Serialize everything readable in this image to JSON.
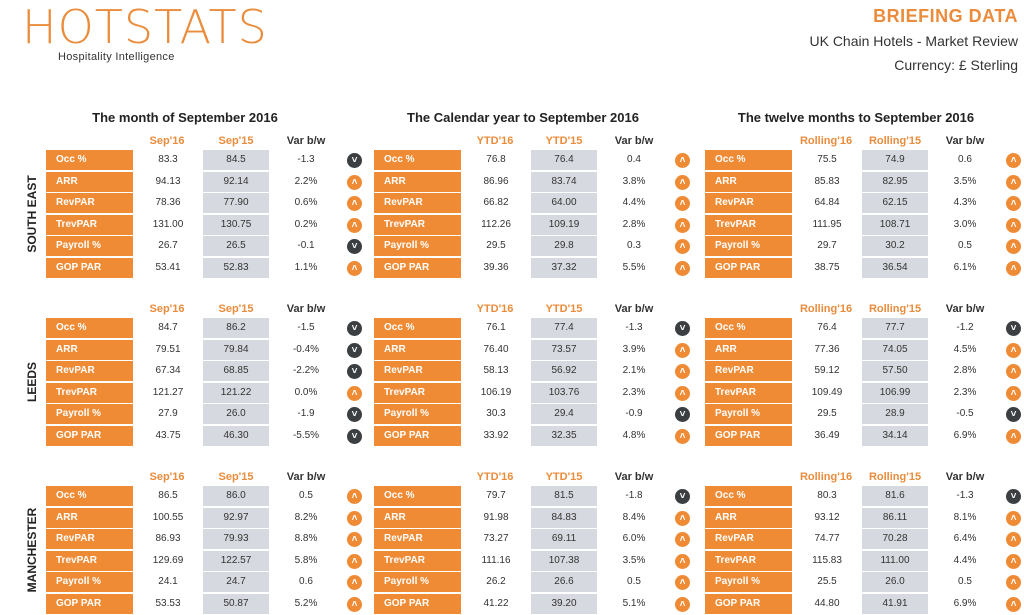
{
  "header": {
    "logo": "HOTSTATS",
    "tagline": "Hospitality Intelligence",
    "title": "BRIEFING DATA",
    "subtitle": "UK Chain Hotels - Market Review",
    "currency": "Currency: £ Sterling"
  },
  "periods": [
    {
      "title": "The month of September 2016",
      "cols": [
        "Sep'16",
        "Sep'15",
        "Var b/w"
      ]
    },
    {
      "title": "The Calendar year to September 2016",
      "cols": [
        "YTD'16",
        "YTD'15",
        "Var b/w"
      ]
    },
    {
      "title": "The twelve months to September 2016",
      "cols": [
        "Rolling'16",
        "Rolling'15",
        "Var b/w"
      ]
    }
  ],
  "regions": [
    {
      "name": "SOUTH EAST",
      "blocks": [
        [
          {
            "label": "Occ %",
            "a": "83.3",
            "b": "84.5",
            "var": "-1.3",
            "dir": "down"
          },
          {
            "label": "ARR",
            "a": "94.13",
            "b": "92.14",
            "var": "2.2%",
            "dir": "up"
          },
          {
            "label": "RevPAR",
            "a": "78.36",
            "b": "77.90",
            "var": "0.6%",
            "dir": "up"
          },
          {
            "label": "TrevPAR",
            "a": "131.00",
            "b": "130.75",
            "var": "0.2%",
            "dir": "up"
          },
          {
            "label": "Payroll %",
            "a": "26.7",
            "b": "26.5",
            "var": "-0.1",
            "dir": "down"
          },
          {
            "label": "GOP PAR",
            "a": "53.41",
            "b": "52.83",
            "var": "1.1%",
            "dir": "up"
          }
        ],
        [
          {
            "label": "Occ %",
            "a": "76.8",
            "b": "76.4",
            "var": "0.4",
            "dir": "up"
          },
          {
            "label": "ARR",
            "a": "86.96",
            "b": "83.74",
            "var": "3.8%",
            "dir": "up"
          },
          {
            "label": "RevPAR",
            "a": "66.82",
            "b": "64.00",
            "var": "4.4%",
            "dir": "up"
          },
          {
            "label": "TrevPAR",
            "a": "112.26",
            "b": "109.19",
            "var": "2.8%",
            "dir": "up"
          },
          {
            "label": "Payroll %",
            "a": "29.5",
            "b": "29.8",
            "var": "0.3",
            "dir": "up"
          },
          {
            "label": "GOP PAR",
            "a": "39.36",
            "b": "37.32",
            "var": "5.5%",
            "dir": "up"
          }
        ],
        [
          {
            "label": "Occ %",
            "a": "75.5",
            "b": "74.9",
            "var": "0.6",
            "dir": "up"
          },
          {
            "label": "ARR",
            "a": "85.83",
            "b": "82.95",
            "var": "3.5%",
            "dir": "up"
          },
          {
            "label": "RevPAR",
            "a": "64.84",
            "b": "62.15",
            "var": "4.3%",
            "dir": "up"
          },
          {
            "label": "TrevPAR",
            "a": "111.95",
            "b": "108.71",
            "var": "3.0%",
            "dir": "up"
          },
          {
            "label": "Payroll %",
            "a": "29.7",
            "b": "30.2",
            "var": "0.5",
            "dir": "up"
          },
          {
            "label": "GOP PAR",
            "a": "38.75",
            "b": "36.54",
            "var": "6.1%",
            "dir": "up"
          }
        ]
      ]
    },
    {
      "name": "LEEDS",
      "blocks": [
        [
          {
            "label": "Occ %",
            "a": "84.7",
            "b": "86.2",
            "var": "-1.5",
            "dir": "down"
          },
          {
            "label": "ARR",
            "a": "79.51",
            "b": "79.84",
            "var": "-0.4%",
            "dir": "down"
          },
          {
            "label": "RevPAR",
            "a": "67.34",
            "b": "68.85",
            "var": "-2.2%",
            "dir": "down"
          },
          {
            "label": "TrevPAR",
            "a": "121.27",
            "b": "121.22",
            "var": "0.0%",
            "dir": "up"
          },
          {
            "label": "Payroll %",
            "a": "27.9",
            "b": "26.0",
            "var": "-1.9",
            "dir": "down"
          },
          {
            "label": "GOP PAR",
            "a": "43.75",
            "b": "46.30",
            "var": "-5.5%",
            "dir": "down"
          }
        ],
        [
          {
            "label": "Occ %",
            "a": "76.1",
            "b": "77.4",
            "var": "-1.3",
            "dir": "down"
          },
          {
            "label": "ARR",
            "a": "76.40",
            "b": "73.57",
            "var": "3.9%",
            "dir": "up"
          },
          {
            "label": "RevPAR",
            "a": "58.13",
            "b": "56.92",
            "var": "2.1%",
            "dir": "up"
          },
          {
            "label": "TrevPAR",
            "a": "106.19",
            "b": "103.76",
            "var": "2.3%",
            "dir": "up"
          },
          {
            "label": "Payroll %",
            "a": "30.3",
            "b": "29.4",
            "var": "-0.9",
            "dir": "down"
          },
          {
            "label": "GOP PAR",
            "a": "33.92",
            "b": "32.35",
            "var": "4.8%",
            "dir": "up"
          }
        ],
        [
          {
            "label": "Occ %",
            "a": "76.4",
            "b": "77.7",
            "var": "-1.2",
            "dir": "down"
          },
          {
            "label": "ARR",
            "a": "77.36",
            "b": "74.05",
            "var": "4.5%",
            "dir": "up"
          },
          {
            "label": "RevPAR",
            "a": "59.12",
            "b": "57.50",
            "var": "2.8%",
            "dir": "up"
          },
          {
            "label": "TrevPAR",
            "a": "109.49",
            "b": "106.99",
            "var": "2.3%",
            "dir": "up"
          },
          {
            "label": "Payroll %",
            "a": "29.5",
            "b": "28.9",
            "var": "-0.5",
            "dir": "down"
          },
          {
            "label": "GOP PAR",
            "a": "36.49",
            "b": "34.14",
            "var": "6.9%",
            "dir": "up"
          }
        ]
      ]
    },
    {
      "name": "MANCHESTER",
      "blocks": [
        [
          {
            "label": "Occ %",
            "a": "86.5",
            "b": "86.0",
            "var": "0.5",
            "dir": "up"
          },
          {
            "label": "ARR",
            "a": "100.55",
            "b": "92.97",
            "var": "8.2%",
            "dir": "up"
          },
          {
            "label": "RevPAR",
            "a": "86.93",
            "b": "79.93",
            "var": "8.8%",
            "dir": "up"
          },
          {
            "label": "TrevPAR",
            "a": "129.69",
            "b": "122.57",
            "var": "5.8%",
            "dir": "up"
          },
          {
            "label": "Payroll %",
            "a": "24.1",
            "b": "24.7",
            "var": "0.6",
            "dir": "up"
          },
          {
            "label": "GOP PAR",
            "a": "53.53",
            "b": "50.87",
            "var": "5.2%",
            "dir": "up"
          }
        ],
        [
          {
            "label": "Occ %",
            "a": "79.7",
            "b": "81.5",
            "var": "-1.8",
            "dir": "down"
          },
          {
            "label": "ARR",
            "a": "91.98",
            "b": "84.83",
            "var": "8.4%",
            "dir": "up"
          },
          {
            "label": "RevPAR",
            "a": "73.27",
            "b": "69.11",
            "var": "6.0%",
            "dir": "up"
          },
          {
            "label": "TrevPAR",
            "a": "111.16",
            "b": "107.38",
            "var": "3.5%",
            "dir": "up"
          },
          {
            "label": "Payroll %",
            "a": "26.2",
            "b": "26.6",
            "var": "0.5",
            "dir": "up"
          },
          {
            "label": "GOP PAR",
            "a": "41.22",
            "b": "39.20",
            "var": "5.1%",
            "dir": "up"
          }
        ],
        [
          {
            "label": "Occ %",
            "a": "80.3",
            "b": "81.6",
            "var": "-1.3",
            "dir": "down"
          },
          {
            "label": "ARR",
            "a": "93.12",
            "b": "86.11",
            "var": "8.1%",
            "dir": "up"
          },
          {
            "label": "RevPAR",
            "a": "74.77",
            "b": "70.28",
            "var": "6.4%",
            "dir": "up"
          },
          {
            "label": "TrevPAR",
            "a": "115.83",
            "b": "111.00",
            "var": "4.4%",
            "dir": "up"
          },
          {
            "label": "Payroll %",
            "a": "25.5",
            "b": "26.0",
            "var": "0.5",
            "dir": "up"
          },
          {
            "label": "GOP PAR",
            "a": "44.80",
            "b": "41.91",
            "var": "6.9%",
            "dir": "up"
          }
        ]
      ]
    }
  ]
}
